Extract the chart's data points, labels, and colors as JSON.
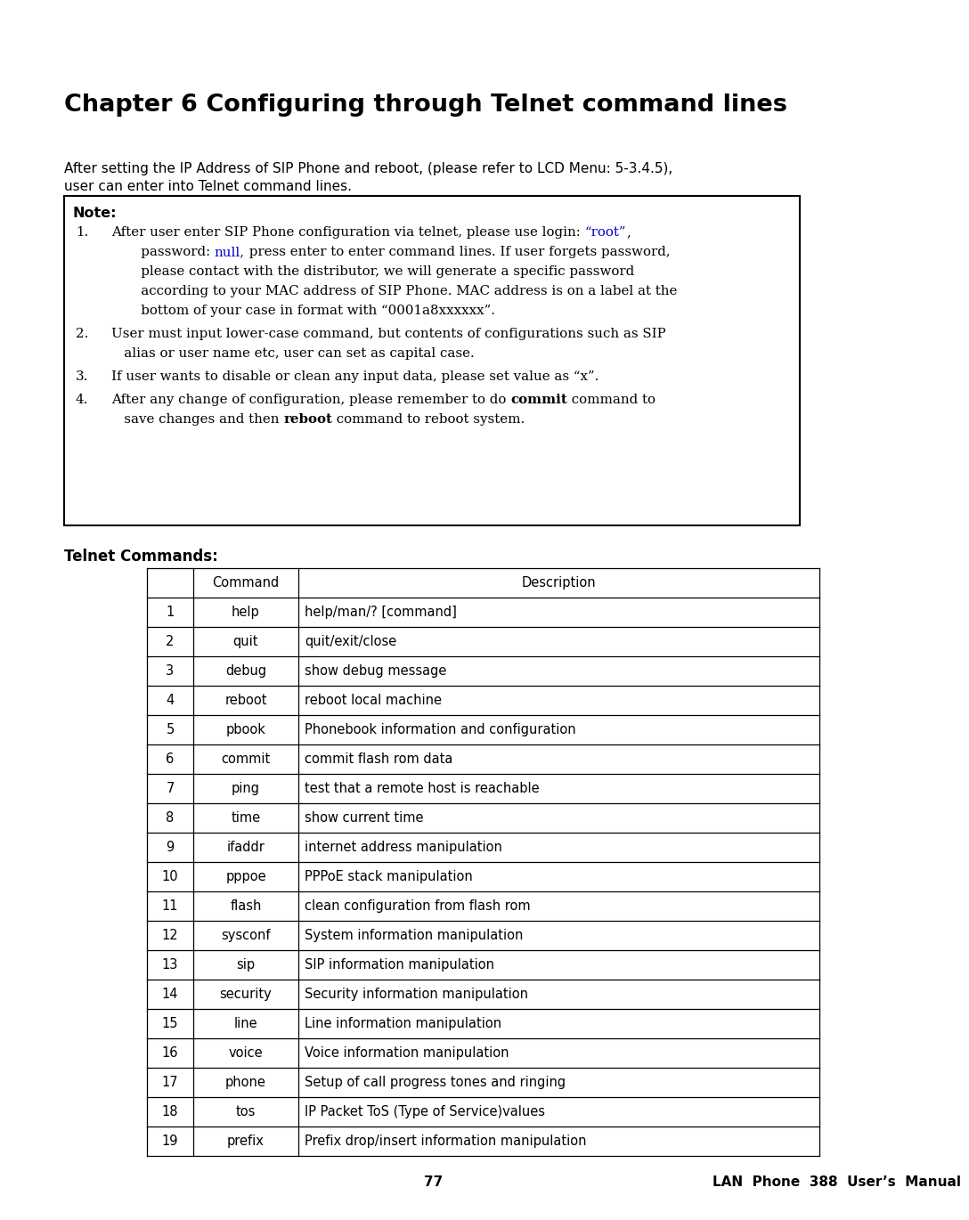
{
  "title": "Chapter 6 Configuring through Telnet command lines",
  "intro_line1": "After setting the IP Address of SIP Phone and reboot, (please refer to LCD Menu: 5-3.4.5),",
  "intro_line2": "user can enter into Telnet command lines.",
  "note_label": "Note:",
  "telnet_label": "Telnet Commands:",
  "table_headers": [
    "",
    "Command",
    "Description"
  ],
  "table_rows": [
    [
      "1",
      "help",
      "help/man/? [command]"
    ],
    [
      "2",
      "quit",
      "quit/exit/close"
    ],
    [
      "3",
      "debug",
      "show debug message"
    ],
    [
      "4",
      "reboot",
      "reboot local machine"
    ],
    [
      "5",
      "pbook",
      "Phonebook information and configuration"
    ],
    [
      "6",
      "commit",
      "commit flash rom data"
    ],
    [
      "7",
      "ping",
      "test that a remote host is reachable"
    ],
    [
      "8",
      "time",
      "show current time"
    ],
    [
      "9",
      "ifaddr",
      "internet address manipulation"
    ],
    [
      "10",
      "pppoe",
      "PPPoE stack manipulation"
    ],
    [
      "11",
      "flash",
      "clean configuration from flash rom"
    ],
    [
      "12",
      "sysconf",
      "System information manipulation"
    ],
    [
      "13",
      "sip",
      "SIP information manipulation"
    ],
    [
      "14",
      "security",
      "Security information manipulation"
    ],
    [
      "15",
      "line",
      "Line information manipulation"
    ],
    [
      "16",
      "voice",
      "Voice information manipulation"
    ],
    [
      "17",
      "phone",
      "Setup of call progress tones and ringing"
    ],
    [
      "18",
      "tos",
      "IP Packet ToS (Type of Service)values"
    ],
    [
      "19",
      "prefix",
      "Prefix drop/insert information manipulation"
    ]
  ],
  "footer_page": "77",
  "footer_text": "LAN  Phone  388  User’s  Manual",
  "bg_color": "#ffffff",
  "text_color": "#000000",
  "blue_color": "#0000cc"
}
